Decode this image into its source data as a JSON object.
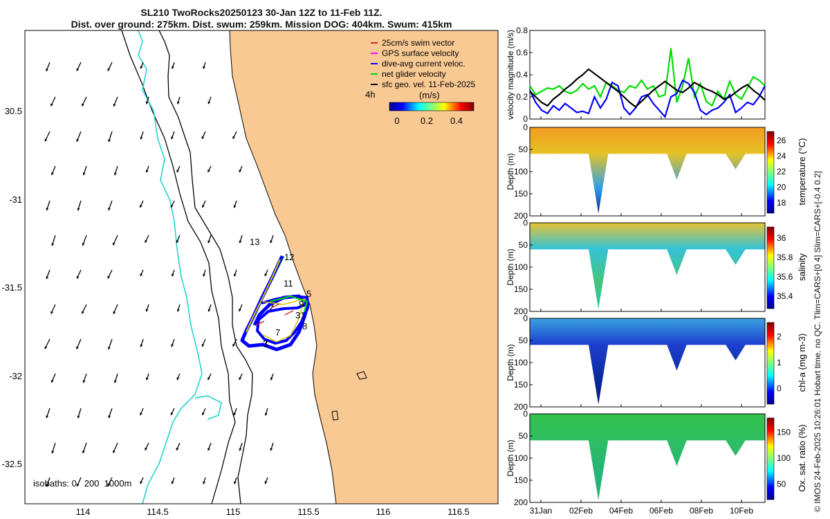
{
  "title": {
    "line1": "SL210 TwoRocks20250123 30-Jan 12Z to 11-Feb 11Z.",
    "line2": "Dist. over ground: 275km. Dist. swum: 259km. Mission DOG: 404km. Swum: 415km"
  },
  "credit": "© IMOS 24-Feb-2025 10:26:01 Hobart time. no QC. Tlim=CARS+[0 4] Slim=CARS+[-0.4 0.2]",
  "colors": {
    "land": "#f9c994",
    "sea": "#ffffff",
    "isobath_shallow": "#22d3d3",
    "isobath": "#000000"
  },
  "map": {
    "x_ticks": [
      "114",
      "114.5",
      "115",
      "115.5",
      "116",
      "116.5"
    ],
    "y_ticks": [
      "30.5",
      "-31",
      "-31.5",
      "-32",
      "-32.5"
    ],
    "isobaths_label": "isobaths: 0   200  1000m",
    "time_label": "4h",
    "colorbar": {
      "label": "(m/s)",
      "ticks": [
        "0",
        "0.2",
        "0.4"
      ]
    },
    "legend": [
      {
        "label": "25cm/s swim vector",
        "color": "#d62728"
      },
      {
        "label": "GPS surface velocity",
        "color": "#ff00ff"
      },
      {
        "label": "dive-avg current veloc.",
        "color": "#0000ff"
      },
      {
        "label": "net glider velocity",
        "color": "#00dd00"
      },
      {
        "label": "sfc geo. vel. 11-Feb-2025",
        "color": "#000000"
      }
    ],
    "track_day_labels": [
      "13",
      "12",
      "11",
      "5",
      "9",
      "31",
      "8",
      "7",
      "3"
    ]
  },
  "chart_data": [
    {
      "type": "line",
      "title": "",
      "ylabel": "velocity magnitude (m/s)",
      "ylim": [
        0,
        0.8
      ],
      "y_ticks": [
        "0",
        "0.2",
        "0.4",
        "0.6",
        "0.8"
      ],
      "x_ticks": [
        "31Jan",
        "02Feb",
        "04Feb",
        "06Feb",
        "08Feb",
        "10Feb"
      ],
      "series": [
        {
          "name": "net glider velocity",
          "color": "#00dd00",
          "values": [
            0.3,
            0.22,
            0.25,
            0.28,
            0.27,
            0.3,
            0.25,
            0.23,
            0.26,
            0.32,
            0.27,
            0.3,
            0.2,
            0.33,
            0.3,
            0.26,
            0.24,
            0.3,
            0.28,
            0.35,
            0.27,
            0.3,
            0.2,
            0.22,
            0.64,
            0.15,
            0.3,
            0.55,
            0.2,
            0.32,
            0.16,
            0.12,
            0.25,
            0.18,
            0.34,
            0.22,
            0.18,
            0.28,
            0.38,
            0.35,
            0.3
          ]
        },
        {
          "name": "dive-avg current veloc.",
          "color": "#0000ff",
          "values": [
            0.26,
            0.15,
            0.08,
            0.05,
            0.12,
            0.08,
            0.14,
            0.1,
            0.06,
            0.07,
            0.05,
            0.2,
            0.1,
            0.18,
            0.33,
            0.3,
            0.1,
            0.04,
            0.1,
            0.2,
            0.22,
            0.14,
            0.08,
            0.02,
            0.2,
            0.23,
            0.35,
            0.32,
            0.24,
            0.08,
            0.04,
            0.08,
            0.1,
            0.15,
            0.22,
            0.06,
            0.1,
            0.15,
            0.13,
            0.2,
            0.3
          ]
        },
        {
          "name": "sfc geo. vel.",
          "color": "#000000",
          "values": [
            0.25,
            0.2,
            0.15,
            0.12,
            0.18,
            0.22,
            0.27,
            0.31,
            0.36,
            0.4,
            0.45,
            0.41,
            0.37,
            0.33,
            0.29,
            0.25,
            0.2,
            0.15,
            0.11,
            0.16,
            0.21,
            0.26,
            0.3,
            0.34,
            0.3,
            0.26,
            0.24,
            0.28,
            0.33,
            0.3,
            0.27,
            0.25,
            0.22,
            0.18,
            0.2,
            0.24,
            0.28,
            0.31,
            0.26,
            0.22,
            0.17
          ]
        }
      ]
    },
    {
      "type": "heatmap",
      "ylabel": "Depth (m)",
      "cbar_label": "temperature (°C)",
      "cbar_ticks": [
        "18",
        "20",
        "22",
        "24",
        "26"
      ],
      "clim": [
        16.5,
        26
      ],
      "ylim": [
        200,
        0
      ],
      "dive_max_depth_m": [
        60,
        60,
        60,
        195,
        60,
        60,
        60,
        118,
        60,
        60,
        95,
        60
      ],
      "surface_value": 25,
      "deep_value": 17
    }
  ],
  "profiles": [
    {
      "ylabel": "Depth (m)",
      "cbar_label": "temperature (°C)",
      "cbar_ticks": [
        "18",
        "20",
        "22",
        "24",
        "26"
      ],
      "y_ticks": [
        "0",
        "50",
        "100",
        "150",
        "200"
      ]
    },
    {
      "ylabel": "Depth (m)",
      "cbar_label": "salinity",
      "cbar_ticks": [
        "35.4",
        "35.6",
        "35.8",
        "36"
      ],
      "y_ticks": [
        "0",
        "50",
        "100",
        "150",
        "200"
      ]
    },
    {
      "ylabel": "Depth (m)",
      "cbar_label": "chl-a (mg m-3)",
      "cbar_ticks": [
        "0",
        "1",
        "2"
      ],
      "y_ticks": [
        "0",
        "50",
        "100",
        "150",
        "200"
      ]
    },
    {
      "ylabel": "Depth (m)",
      "cbar_label": "Ox. sat. ratio (%)",
      "cbar_ticks": [
        "50",
        "100",
        "150"
      ],
      "y_ticks": [
        "0",
        "50",
        "100",
        "150",
        "200"
      ]
    }
  ]
}
